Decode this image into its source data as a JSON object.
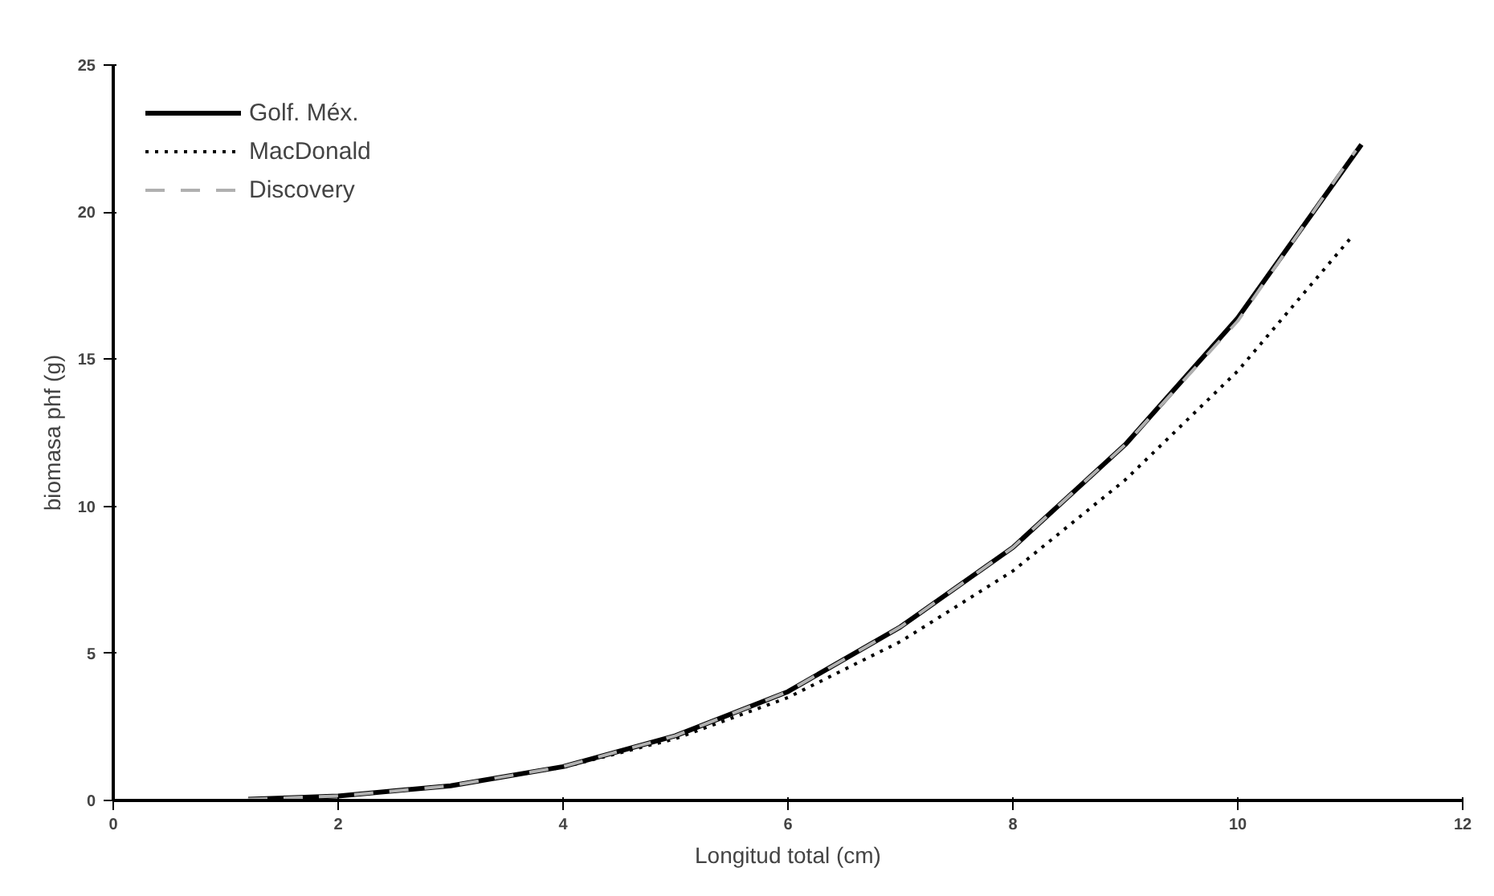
{
  "chart_data": {
    "type": "line",
    "xlabel": "Longitud total (cm)",
    "ylabel": "biomasa phf (g)",
    "xlim": [
      0,
      12
    ],
    "ylim": [
      0,
      25
    ],
    "xticks": [
      0,
      2,
      4,
      6,
      8,
      10,
      12
    ],
    "yticks": [
      0,
      5,
      10,
      15,
      20,
      25
    ],
    "grid": false,
    "legend": "top left",
    "marker": "none",
    "series": [
      {
        "name": "Golf. Méx.",
        "color": "#000000",
        "line_style": "solid",
        "x": [
          1.2,
          2,
          3,
          4,
          5,
          6,
          7,
          8,
          9,
          10,
          11.1
        ],
        "values": [
          0.04,
          0.15,
          0.5,
          1.15,
          2.2,
          3.7,
          5.9,
          8.6,
          12.1,
          16.4,
          22.3
        ]
      },
      {
        "name": "MacDonald",
        "color": "#000000",
        "line_style": "dotted",
        "x": [
          1.2,
          2,
          3,
          4,
          5,
          6,
          7,
          8,
          9,
          10,
          11
        ],
        "values": [
          0.04,
          0.16,
          0.5,
          1.13,
          2.1,
          3.5,
          5.4,
          7.8,
          10.9,
          14.6,
          19.1
        ]
      },
      {
        "name": "Discovery",
        "color": "#b0b0b0",
        "line_style": "dashed",
        "x": [
          1.2,
          2,
          3,
          4,
          5,
          6,
          7,
          8,
          9,
          10,
          11.05
        ],
        "values": [
          0.04,
          0.15,
          0.5,
          1.15,
          2.2,
          3.7,
          5.9,
          8.6,
          12.1,
          16.3,
          22.1
        ]
      }
    ]
  }
}
